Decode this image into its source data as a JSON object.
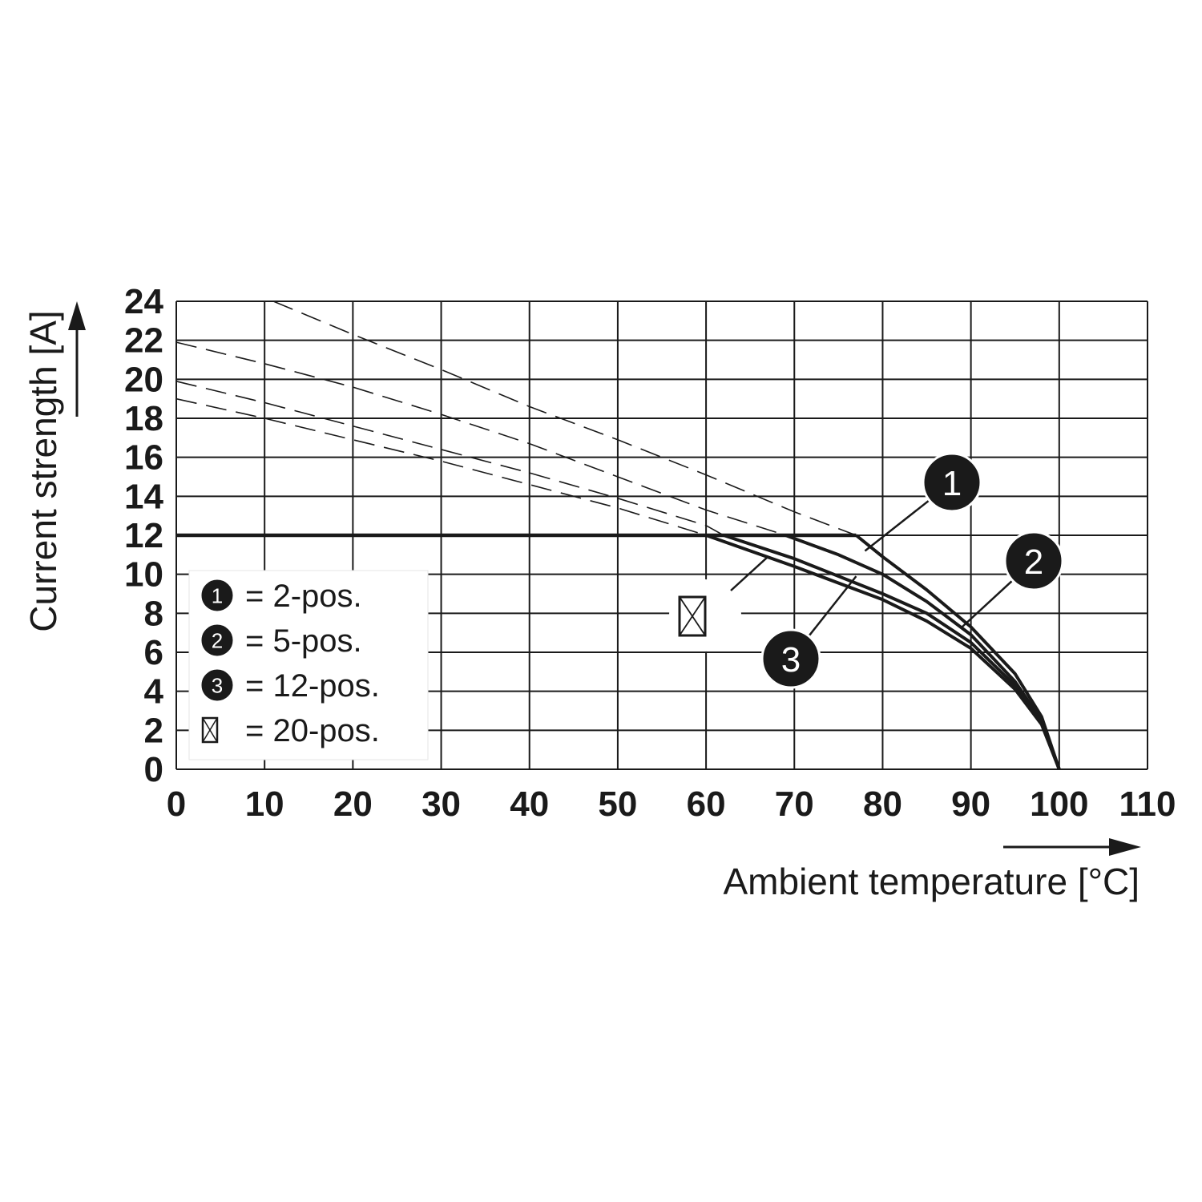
{
  "chart_data": {
    "type": "line",
    "xlabel": "Ambient temperature [°C]",
    "ylabel": "Current strength [A]",
    "xlim": [
      0,
      110
    ],
    "ylim": [
      0,
      24
    ],
    "x_ticks": [
      0,
      10,
      20,
      30,
      40,
      50,
      60,
      70,
      80,
      90,
      100,
      110
    ],
    "y_ticks": [
      0,
      2,
      4,
      6,
      8,
      10,
      12,
      14,
      16,
      18,
      20,
      22,
      24
    ],
    "grid": true,
    "legend_position": "bottom-left",
    "limit_line": {
      "y": 12,
      "x": [
        0,
        77
      ]
    },
    "series": [
      {
        "name": "2-pos.",
        "badge": "1",
        "marker": "circle",
        "dashed": [
          [
            11,
            24
          ],
          [
            20,
            22.3
          ],
          [
            30,
            20.5
          ],
          [
            40,
            18.6
          ],
          [
            50,
            16.9
          ],
          [
            60,
            15.1
          ],
          [
            70,
            13.2
          ],
          [
            77,
            12
          ]
        ],
        "solid": [
          [
            77,
            12
          ],
          [
            80,
            10.9
          ],
          [
            85,
            9.2
          ],
          [
            90,
            7.3
          ],
          [
            95,
            4.9
          ],
          [
            98,
            2.7
          ],
          [
            100,
            0
          ]
        ]
      },
      {
        "name": "5-pos.",
        "badge": "2",
        "marker": "circle",
        "dashed": [
          [
            0,
            21.9
          ],
          [
            10,
            20.8
          ],
          [
            20,
            19.6
          ],
          [
            30,
            18.2
          ],
          [
            40,
            16.7
          ],
          [
            50,
            15
          ],
          [
            60,
            13.3
          ],
          [
            69,
            12
          ]
        ],
        "solid": [
          [
            69,
            12
          ],
          [
            75,
            11
          ],
          [
            80,
            10
          ],
          [
            85,
            8.6
          ],
          [
            90,
            6.9
          ],
          [
            95,
            4.5
          ],
          [
            98,
            2.5
          ],
          [
            100,
            0
          ]
        ]
      },
      {
        "name": "12-pos.",
        "badge": "3",
        "marker": "circle",
        "dashed": [
          [
            0,
            19.9
          ],
          [
            10,
            18.8
          ],
          [
            20,
            17.6
          ],
          [
            30,
            16.4
          ],
          [
            40,
            15.2
          ],
          [
            50,
            13.9
          ],
          [
            60,
            12.5
          ],
          [
            62,
            12
          ]
        ],
        "solid": [
          [
            62,
            12
          ],
          [
            70,
            10.8
          ],
          [
            80,
            9
          ],
          [
            85,
            8
          ],
          [
            90,
            6.5
          ],
          [
            95,
            4.3
          ],
          [
            98,
            2.4
          ],
          [
            100,
            0
          ]
        ]
      },
      {
        "name": "20-pos.",
        "badge": "",
        "marker": "crossed-box",
        "dashed": [
          [
            0,
            19
          ],
          [
            10,
            18
          ],
          [
            20,
            16.9
          ],
          [
            30,
            15.8
          ],
          [
            40,
            14.6
          ],
          [
            50,
            13.4
          ],
          [
            60,
            12
          ]
        ],
        "solid": [
          [
            60,
            12
          ],
          [
            70,
            10.4
          ],
          [
            80,
            8.7
          ],
          [
            85,
            7.6
          ],
          [
            90,
            6.2
          ],
          [
            95,
            4.1
          ],
          [
            98,
            2.3
          ],
          [
            100,
            0
          ]
        ]
      }
    ],
    "legend": [
      {
        "badge": "1",
        "marker": "circle",
        "text": "= 2-pos."
      },
      {
        "badge": "2",
        "marker": "circle",
        "text": "= 5-pos."
      },
      {
        "badge": "3",
        "marker": "circle",
        "text": "= 12-pos."
      },
      {
        "badge": "",
        "marker": "crossed-box",
        "text": "= 20-pos."
      }
    ],
    "annotations": [
      {
        "badge": "1",
        "target": [
          78,
          11.2
        ]
      },
      {
        "badge": "2",
        "target": [
          89,
          7.3
        ]
      },
      {
        "badge": "3",
        "target": [
          77,
          9.9
        ]
      },
      {
        "badge": "",
        "marker": "crossed-box",
        "target": [
          67,
          10.9
        ]
      }
    ]
  }
}
